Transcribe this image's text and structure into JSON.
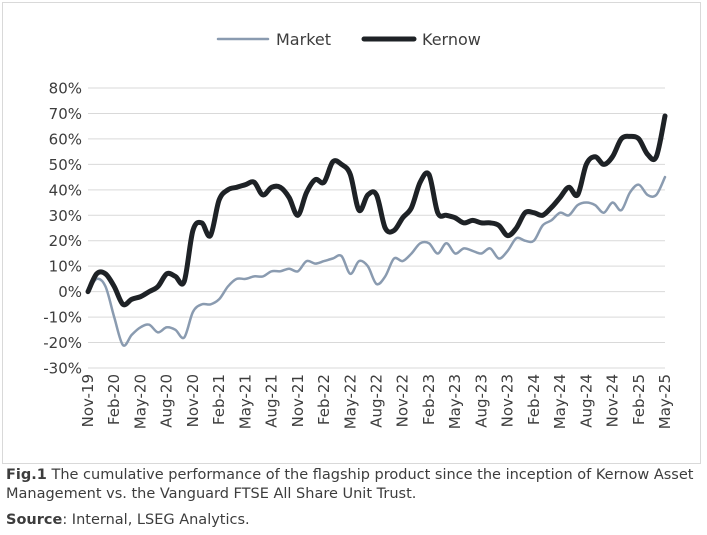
{
  "chart_data": {
    "type": "line",
    "title": "",
    "xlabel": "",
    "ylabel": "",
    "ylim": [
      -0.3,
      0.8
    ],
    "yticks": [
      "80%",
      "70%",
      "60%",
      "50%",
      "40%",
      "30%",
      "20%",
      "10%",
      "0%",
      "-10%",
      "-20%",
      "-30%"
    ],
    "ytick_values": [
      0.8,
      0.7,
      0.6,
      0.5,
      0.4,
      0.3,
      0.2,
      0.1,
      0.0,
      -0.1,
      -0.2,
      -0.3
    ],
    "xticks": [
      "Nov-19",
      "Feb-20",
      "May-20",
      "Aug-20",
      "Nov-20",
      "Feb-21",
      "May-21",
      "Aug-21",
      "Nov-21",
      "Feb-22",
      "May-22",
      "Aug-22",
      "Nov-22",
      "Feb-23",
      "May-23",
      "Aug-23",
      "Nov-23",
      "Feb-24",
      "May-24",
      "Aug-24",
      "Nov-24",
      "Feb-25",
      "May-25"
    ],
    "grid": true,
    "legend_position": "top",
    "x": [
      "2019-11",
      "2019-12",
      "2020-01",
      "2020-02",
      "2020-03",
      "2020-04",
      "2020-05",
      "2020-06",
      "2020-07",
      "2020-08",
      "2020-09",
      "2020-10",
      "2020-11",
      "2020-12",
      "2021-01",
      "2021-02",
      "2021-03",
      "2021-04",
      "2021-05",
      "2021-06",
      "2021-07",
      "2021-08",
      "2021-09",
      "2021-10",
      "2021-11",
      "2021-12",
      "2022-01",
      "2022-02",
      "2022-03",
      "2022-04",
      "2022-05",
      "2022-06",
      "2022-07",
      "2022-08",
      "2022-09",
      "2022-10",
      "2022-11",
      "2022-12",
      "2023-01",
      "2023-02",
      "2023-03",
      "2023-04",
      "2023-05",
      "2023-06",
      "2023-07",
      "2023-08",
      "2023-09",
      "2023-10",
      "2023-11",
      "2023-12",
      "2024-01",
      "2024-02",
      "2024-03",
      "2024-04",
      "2024-05",
      "2024-06",
      "2024-07",
      "2024-08",
      "2024-09",
      "2024-10",
      "2024-11",
      "2024-12",
      "2025-01",
      "2025-02",
      "2025-03",
      "2025-04",
      "2025-05"
    ],
    "series": [
      {
        "name": "Market",
        "color": "#8a9bb0",
        "width": 2.5,
        "values": [
          0.0,
          0.05,
          0.02,
          -0.1,
          -0.21,
          -0.17,
          -0.14,
          -0.13,
          -0.16,
          -0.14,
          -0.15,
          -0.18,
          -0.08,
          -0.05,
          -0.05,
          -0.03,
          0.02,
          0.05,
          0.05,
          0.06,
          0.06,
          0.08,
          0.08,
          0.09,
          0.08,
          0.12,
          0.11,
          0.12,
          0.13,
          0.14,
          0.07,
          0.12,
          0.1,
          0.03,
          0.06,
          0.13,
          0.12,
          0.15,
          0.19,
          0.19,
          0.15,
          0.19,
          0.15,
          0.17,
          0.16,
          0.15,
          0.17,
          0.13,
          0.16,
          0.21,
          0.2,
          0.2,
          0.26,
          0.28,
          0.31,
          0.3,
          0.34,
          0.35,
          0.34,
          0.31,
          0.35,
          0.32,
          0.39,
          0.42,
          0.38,
          0.38,
          0.45
        ]
      },
      {
        "name": "Kernow",
        "color": "#1e2226",
        "width": 5,
        "values": [
          0.0,
          0.07,
          0.07,
          0.02,
          -0.05,
          -0.03,
          -0.02,
          0.0,
          0.02,
          0.07,
          0.06,
          0.04,
          0.24,
          0.27,
          0.22,
          0.36,
          0.4,
          0.41,
          0.42,
          0.43,
          0.38,
          0.41,
          0.41,
          0.37,
          0.3,
          0.39,
          0.44,
          0.43,
          0.51,
          0.5,
          0.46,
          0.32,
          0.38,
          0.38,
          0.25,
          0.24,
          0.29,
          0.33,
          0.43,
          0.46,
          0.31,
          0.3,
          0.29,
          0.27,
          0.28,
          0.27,
          0.27,
          0.26,
          0.22,
          0.25,
          0.31,
          0.31,
          0.3,
          0.33,
          0.37,
          0.41,
          0.38,
          0.5,
          0.53,
          0.5,
          0.53,
          0.6,
          0.61,
          0.6,
          0.54,
          0.53,
          0.69
        ]
      }
    ]
  },
  "caption": {
    "label": "Fig.1",
    "text": " The cumulative performance of the flagship product since the inception of Kernow Asset Management vs. the Vanguard FTSE All Share Unit Trust."
  },
  "source": {
    "label": "Source",
    "text": ": Internal, LSEG Analytics."
  }
}
